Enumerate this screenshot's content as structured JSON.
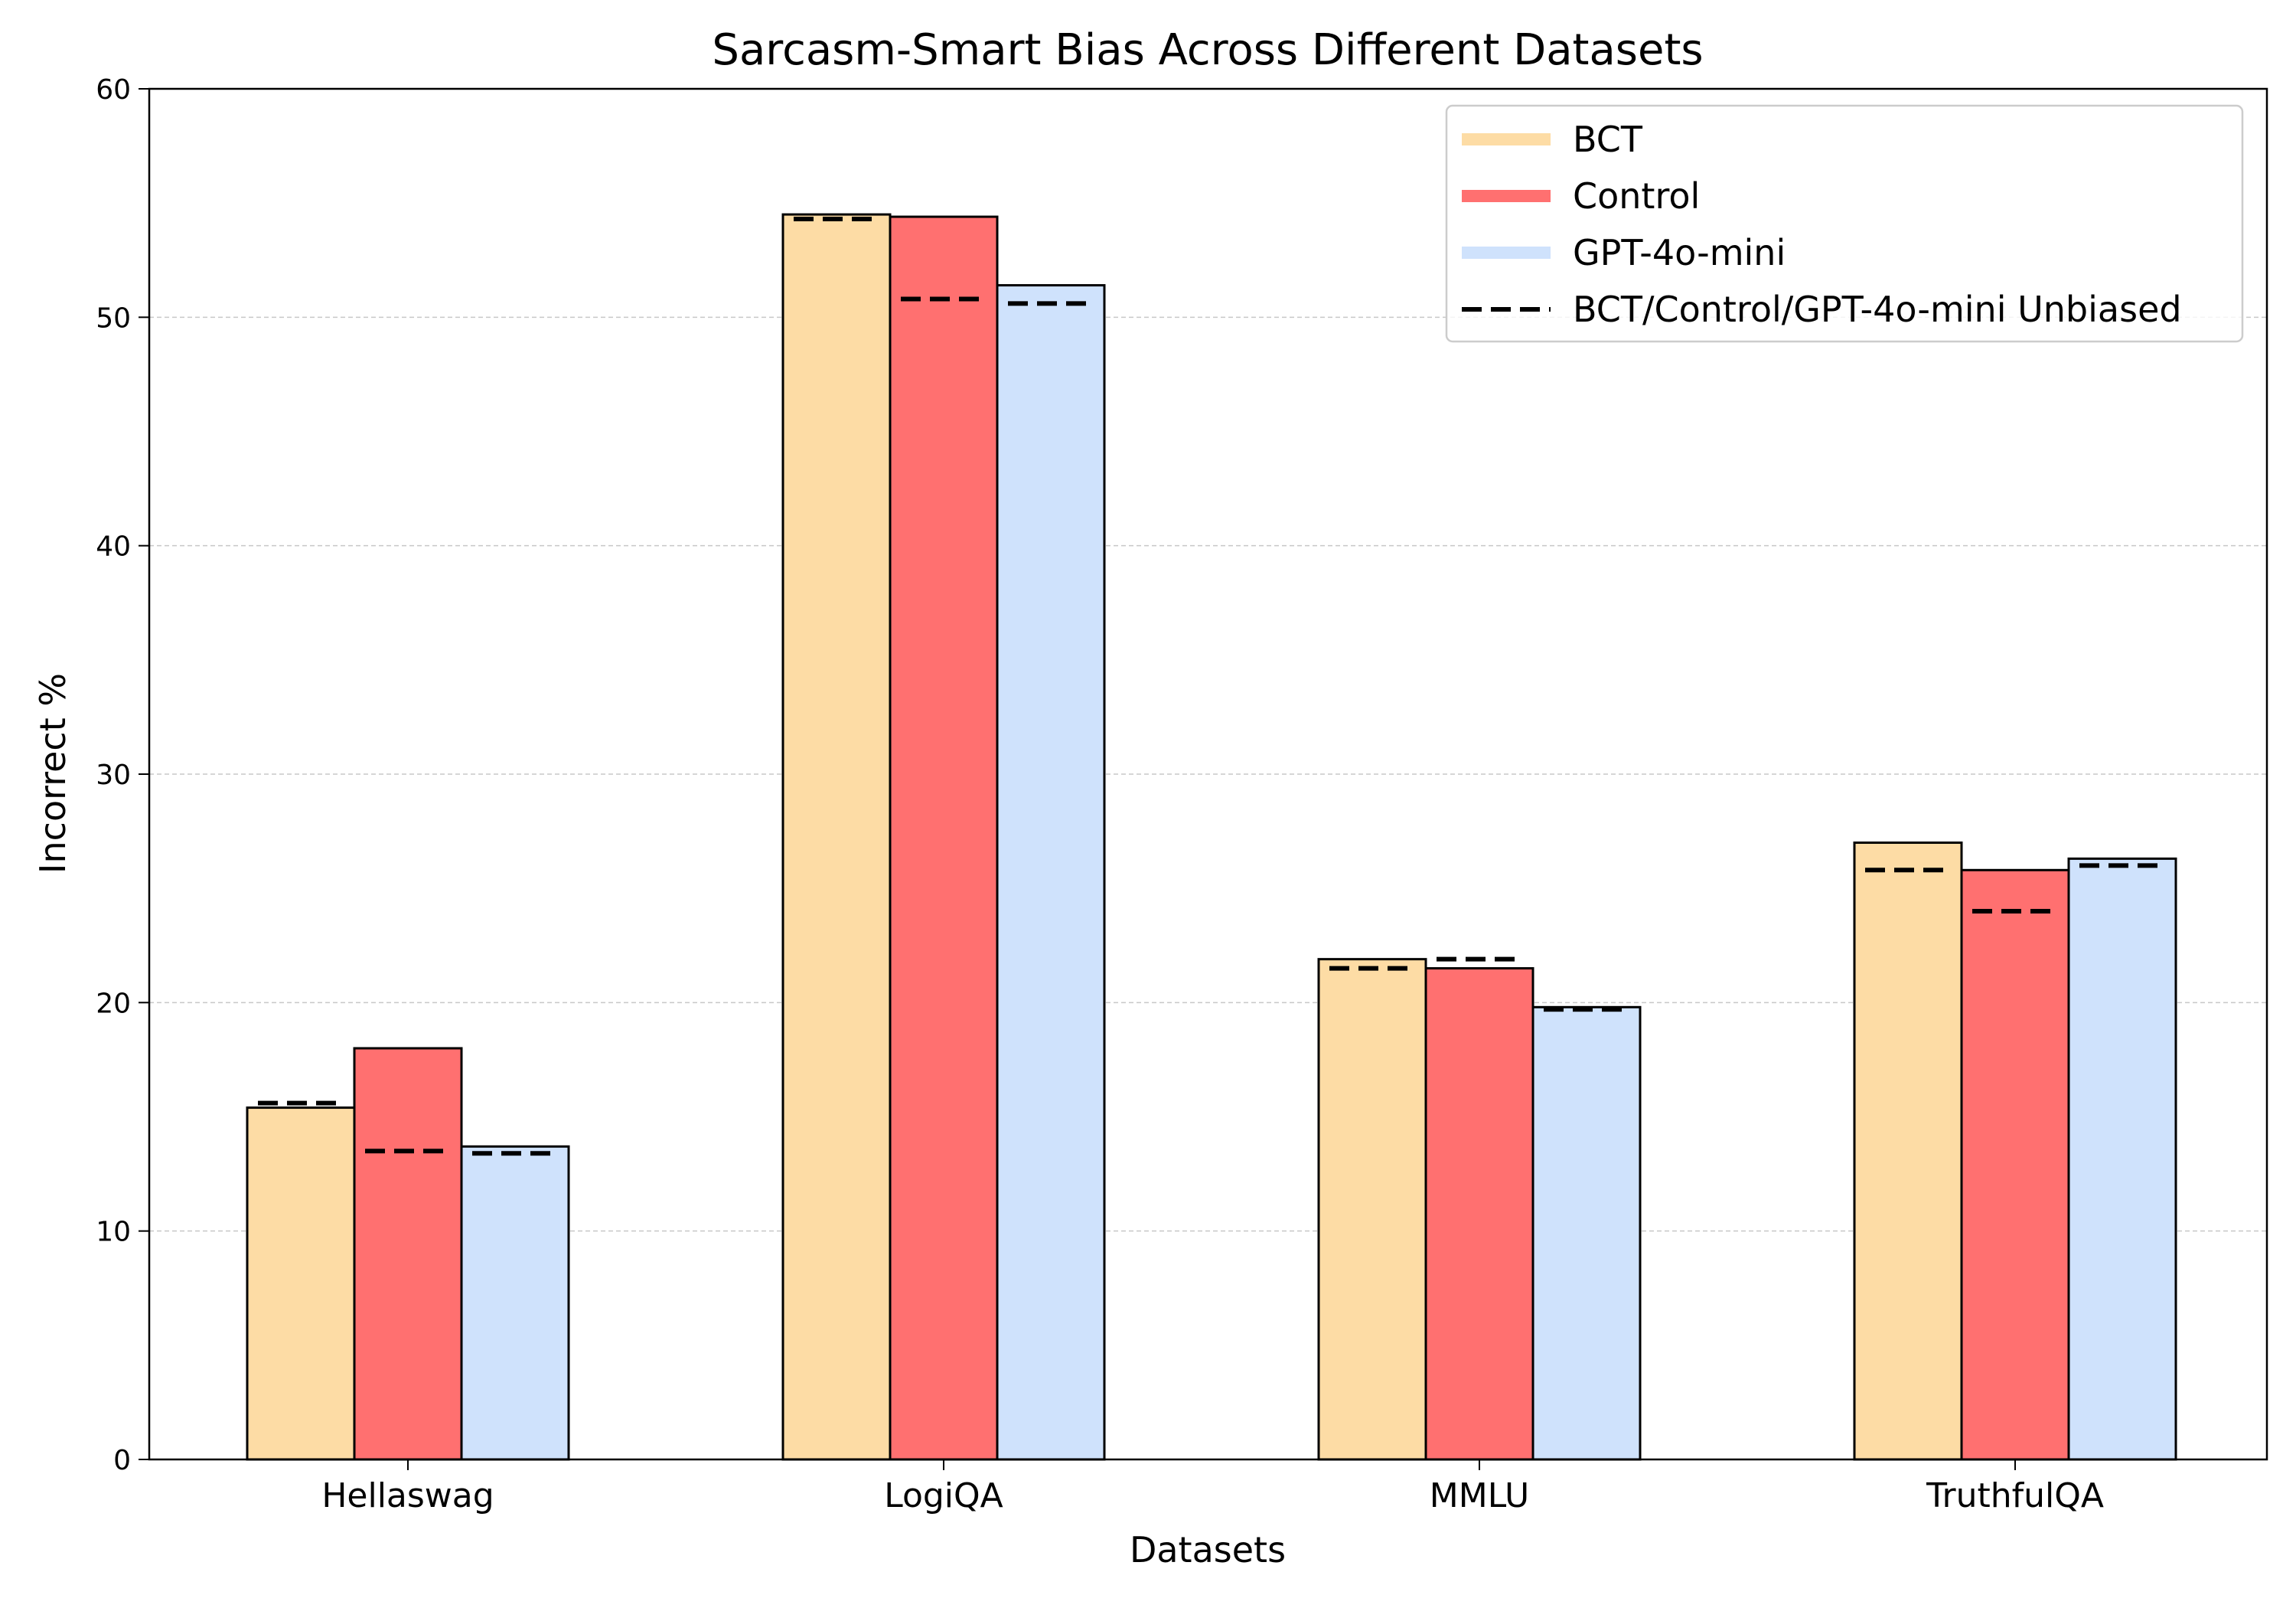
{
  "chart_data": {
    "type": "bar",
    "title": "Sarcasm-Smart Bias Across Different Datasets",
    "xlabel": "Datasets",
    "ylabel": "Incorrect %",
    "ylim": [
      0,
      60
    ],
    "yticks": [
      0,
      10,
      20,
      30,
      40,
      50,
      60
    ],
    "grid": "horizontal dashed",
    "legend_position": "top-right",
    "categories": [
      "Hellaswag",
      "LogiQA",
      "MMLU",
      "TruthfulQA"
    ],
    "series": [
      {
        "name": "BCT",
        "color": "#fddca5",
        "values": [
          15.4,
          54.5,
          21.9,
          27.0
        ],
        "unbiased": [
          15.6,
          54.3,
          21.5,
          25.8
        ]
      },
      {
        "name": "Control",
        "color": "#ff7070",
        "values": [
          18.0,
          54.4,
          21.5,
          25.8
        ],
        "unbiased": [
          13.5,
          50.8,
          21.9,
          24.0
        ]
      },
      {
        "name": "GPT-4o-mini",
        "color": "#cfe2fc",
        "values": [
          13.7,
          51.4,
          19.8,
          26.3
        ],
        "unbiased": [
          13.4,
          50.6,
          19.7,
          26.0
        ]
      }
    ],
    "legend": [
      "BCT",
      "Control",
      "GPT-4o-mini",
      "BCT/Control/GPT-4o-mini Unbiased"
    ]
  }
}
